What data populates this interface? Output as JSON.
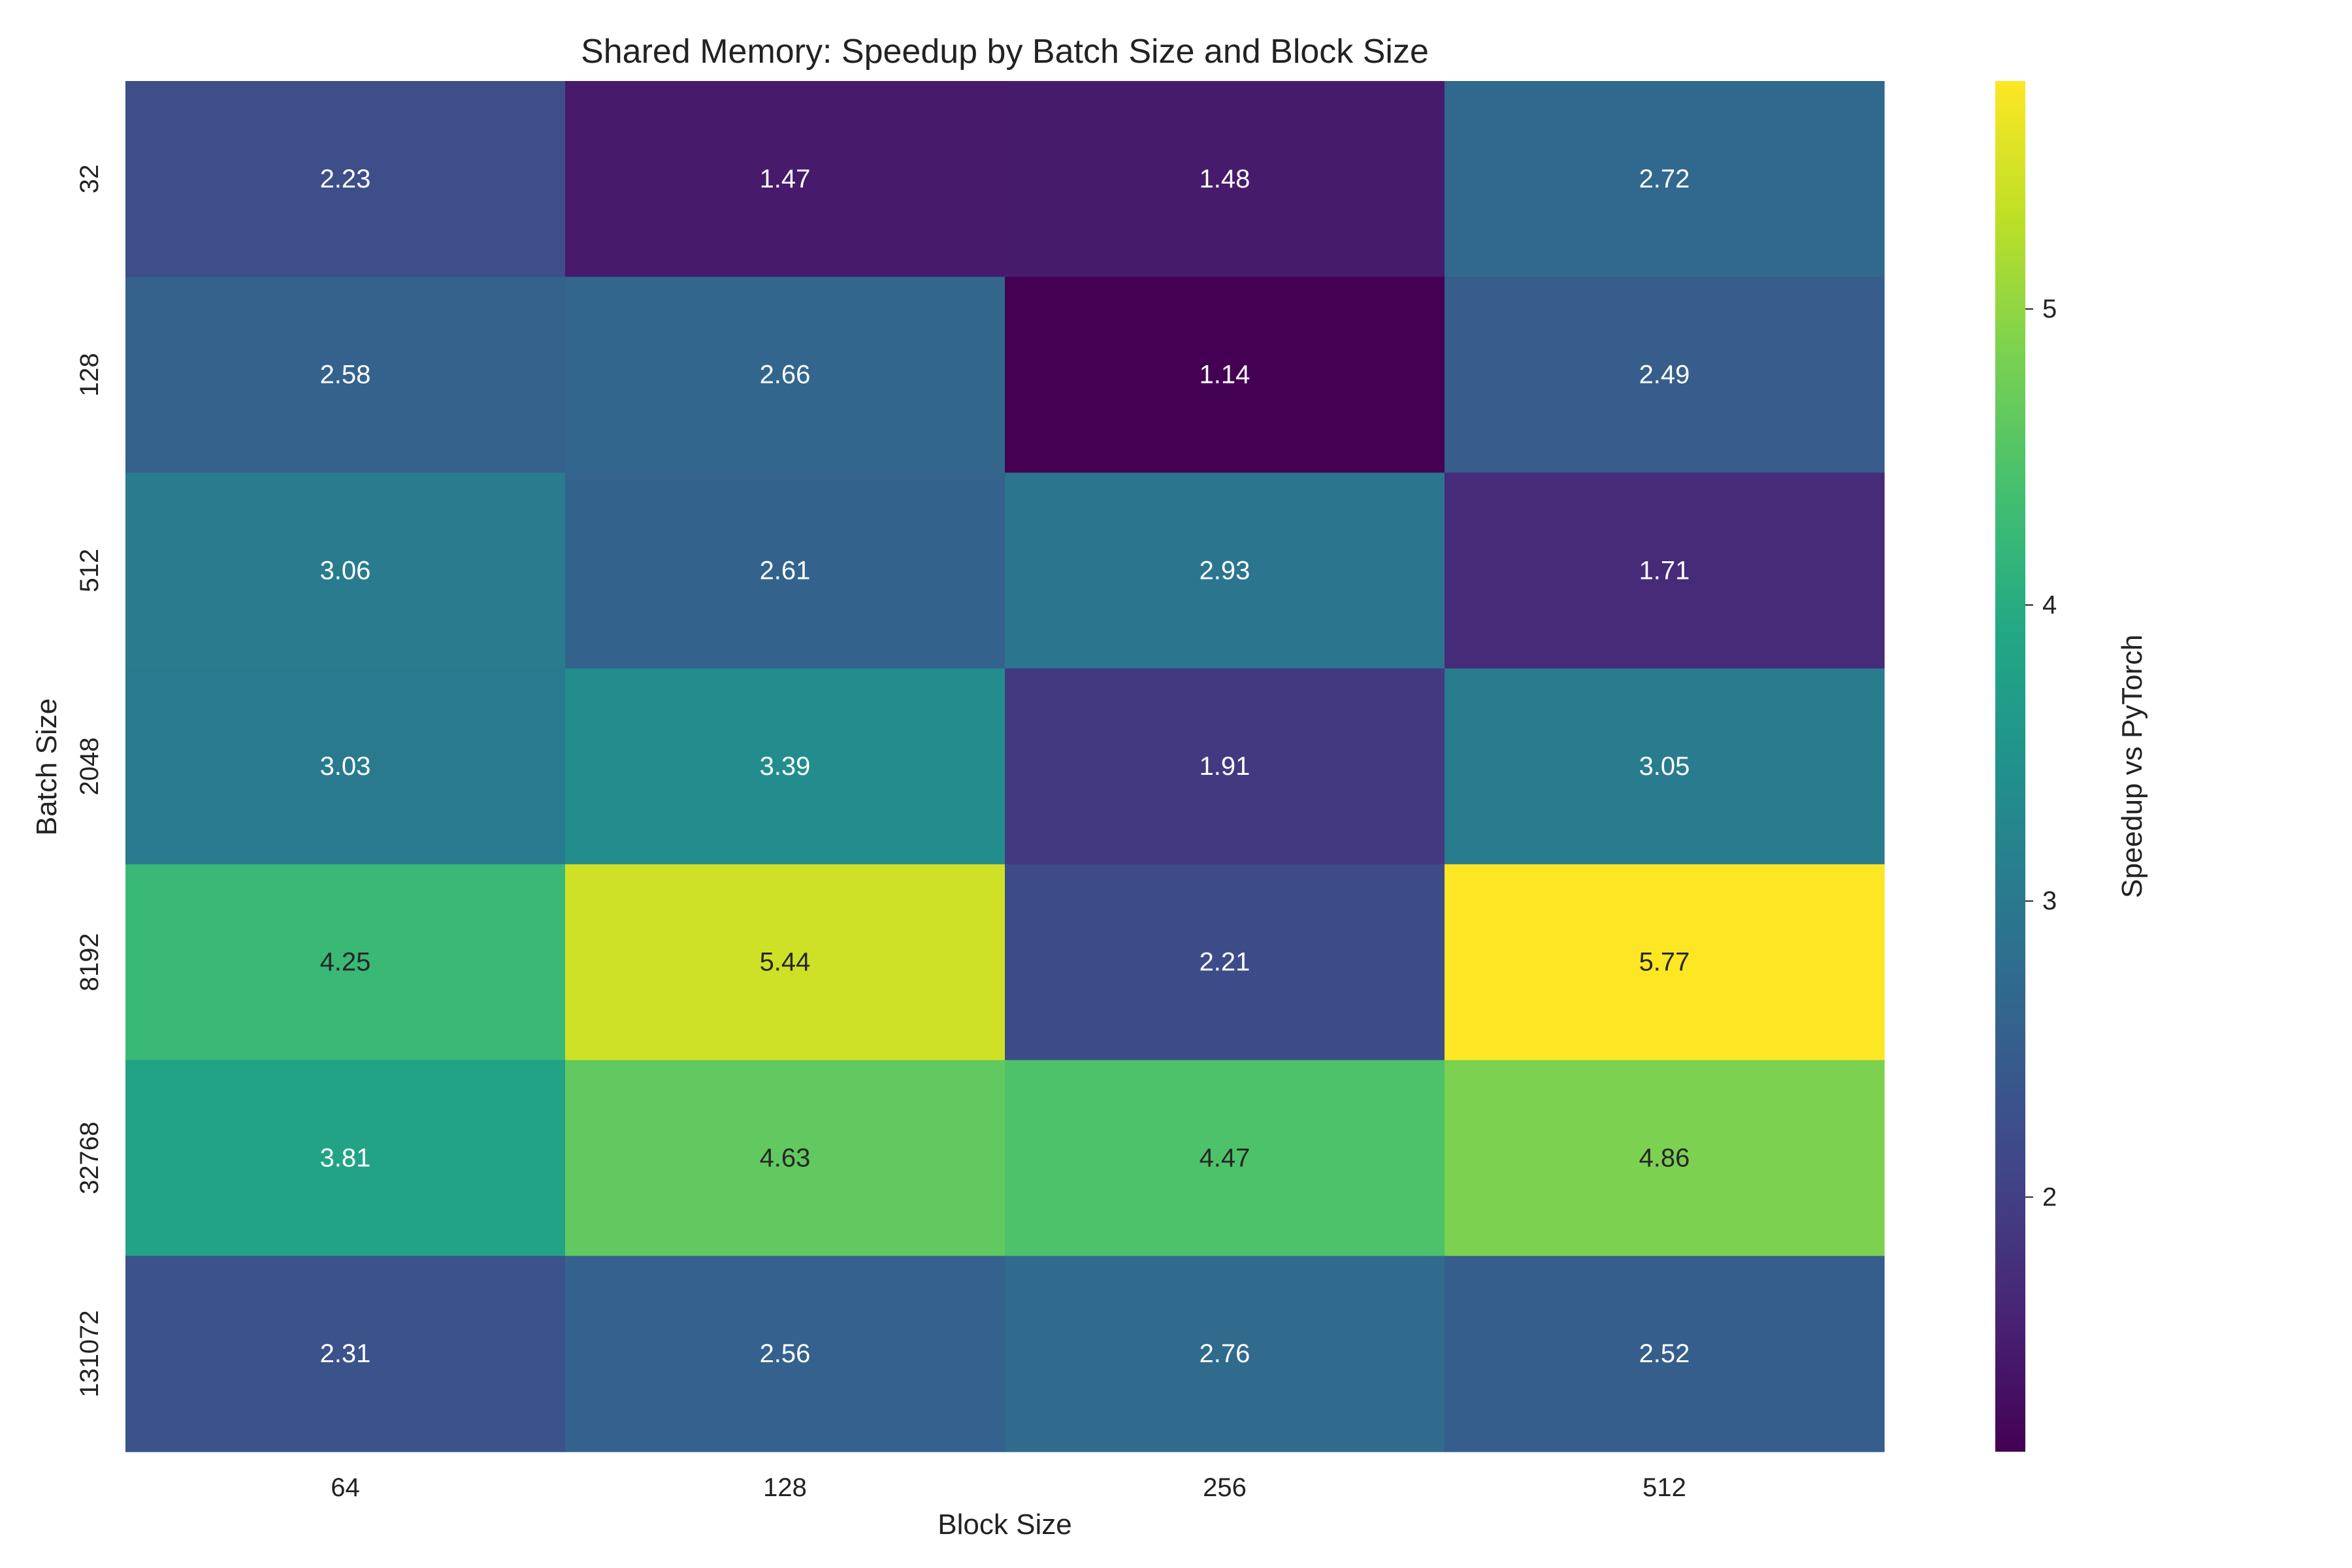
{
  "chart_data": {
    "type": "heatmap",
    "title": "Shared Memory: Speedup by Batch Size and Block Size",
    "xlabel": "Block Size",
    "ylabel": "Batch Size",
    "x_categories": [
      "64",
      "128",
      "256",
      "512"
    ],
    "y_categories": [
      "32",
      "128",
      "512",
      "2048",
      "8192",
      "32768",
      "131072"
    ],
    "values": [
      [
        2.23,
        1.47,
        1.48,
        2.72
      ],
      [
        2.58,
        2.66,
        1.14,
        2.49
      ],
      [
        3.06,
        2.61,
        2.93,
        1.71
      ],
      [
        3.03,
        3.39,
        1.91,
        3.05
      ],
      [
        4.25,
        5.44,
        2.21,
        5.77
      ],
      [
        3.81,
        4.63,
        4.47,
        4.86
      ],
      [
        2.31,
        2.56,
        2.76,
        2.52
      ]
    ],
    "colormap": "viridis",
    "colorbar": {
      "label": "Speedup vs PyTorch",
      "range": [
        1.14,
        5.77
      ],
      "ticks": [
        2,
        3,
        4,
        5
      ]
    },
    "grid": false
  }
}
